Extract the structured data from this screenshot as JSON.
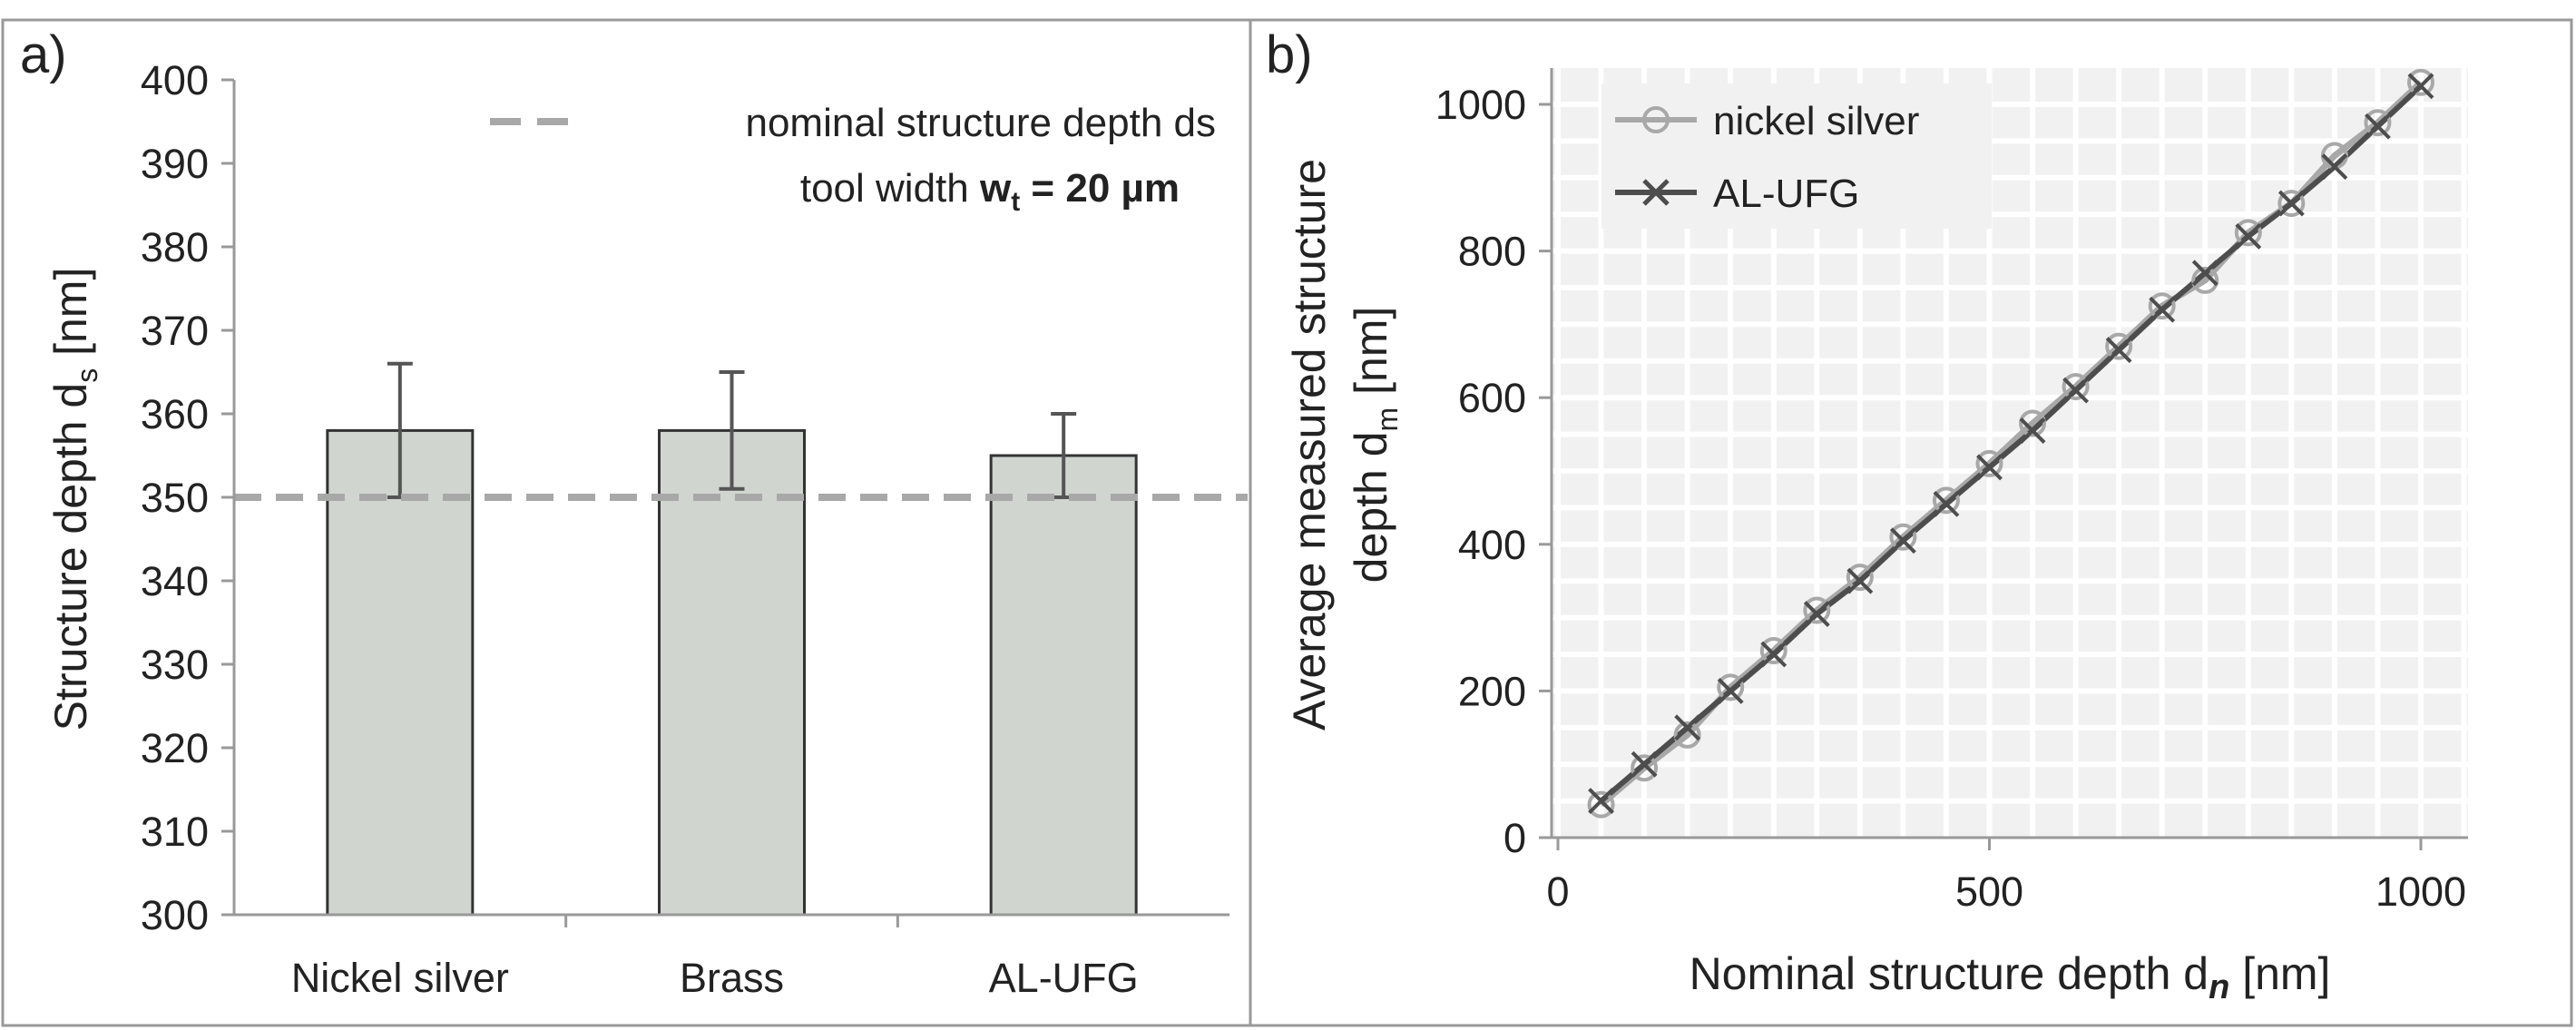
{
  "chart_data": [
    {
      "panel": "a)",
      "type": "bar",
      "title": "",
      "ylabel_main": "Structure depth d",
      "ylabel_sub": "s",
      "ylabel_unit": " [nm]",
      "xlabel": "",
      "ylim": [
        300,
        400
      ],
      "yticks": [
        300,
        310,
        320,
        330,
        340,
        350,
        360,
        370,
        380,
        390,
        400
      ],
      "categories": [
        "Nickel silver",
        "Brass",
        "AL-UFG"
      ],
      "values": [
        358,
        358,
        355
      ],
      "error_low": [
        350,
        351,
        350
      ],
      "error_high": [
        366,
        365,
        360
      ],
      "reference_line": {
        "value": 350,
        "label": "nominal structure depth ds"
      },
      "annotation": {
        "prefix": "tool width ",
        "bold_main": "w",
        "bold_sub": "t",
        "bold_suffix": " = 20 µm"
      },
      "colors": {
        "bar_fill": "#d0d5d0",
        "bar_stroke": "#333333",
        "error": "#555555",
        "reference": "#a8a8a8"
      }
    },
    {
      "panel": "b)",
      "type": "line",
      "title": "",
      "ylabel_line1": "Average measured structure",
      "ylabel_line2_main": "depth d",
      "ylabel_line2_sub": "m",
      "ylabel_line2_unit": " [nm]",
      "xlabel_main": "Nominal structure depth d",
      "xlabel_sub": "n",
      "xlabel_unit": " [nm]",
      "xlim": [
        0,
        1000
      ],
      "ylim": [
        0,
        1000
      ],
      "xticks": [
        0,
        500,
        1000
      ],
      "yticks": [
        0,
        200,
        400,
        600,
        800,
        1000
      ],
      "grid": true,
      "legend": "top-left",
      "series": [
        {
          "name": "nickel silver",
          "marker": "circle",
          "color": "#a8a8a8",
          "x": [
            50,
            100,
            150,
            200,
            250,
            300,
            350,
            400,
            450,
            500,
            550,
            600,
            650,
            700,
            750,
            800,
            850,
            900,
            950,
            1000
          ],
          "y": [
            45,
            95,
            140,
            205,
            255,
            310,
            355,
            410,
            460,
            510,
            565,
            615,
            670,
            725,
            760,
            825,
            865,
            930,
            975,
            1030
          ]
        },
        {
          "name": "AL-UFG",
          "marker": "x",
          "color": "#4d4d4d",
          "x": [
            50,
            100,
            150,
            200,
            250,
            300,
            350,
            400,
            450,
            500,
            550,
            600,
            650,
            700,
            750,
            800,
            850,
            900,
            950,
            1000
          ],
          "y": [
            50,
            100,
            150,
            200,
            250,
            305,
            350,
            405,
            455,
            505,
            555,
            610,
            665,
            720,
            770,
            820,
            865,
            915,
            970,
            1025
          ]
        }
      ]
    }
  ]
}
